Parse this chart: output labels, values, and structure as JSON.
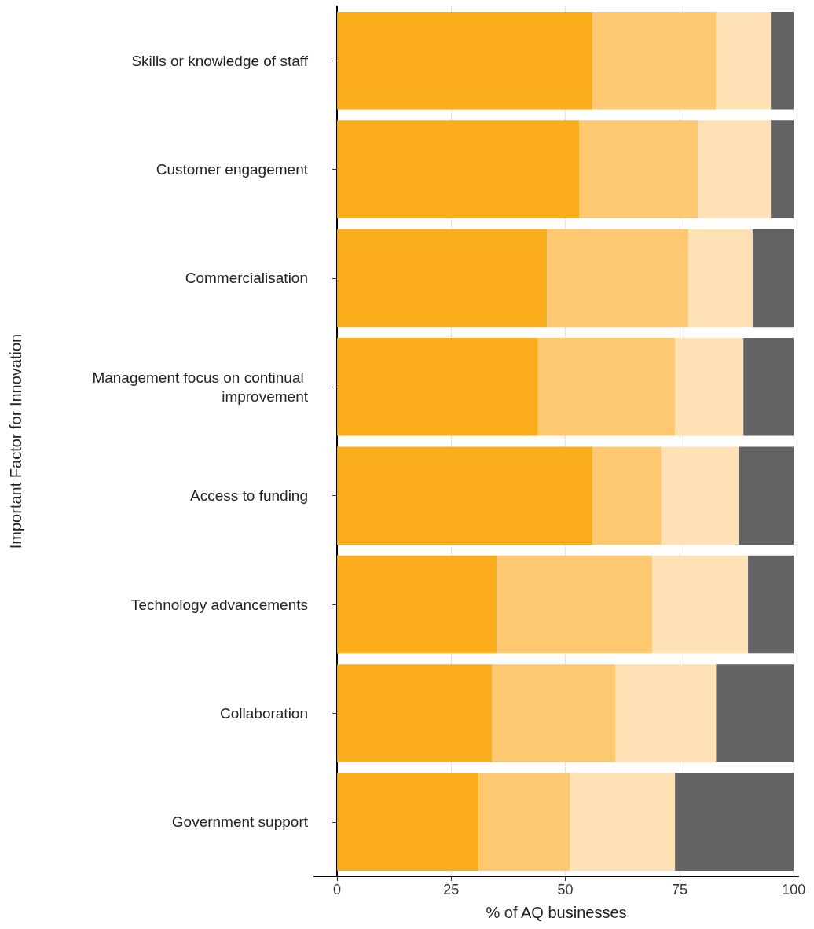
{
  "chart_data": {
    "type": "bar",
    "orientation": "horizontal",
    "stacked": true,
    "xlabel": "% of AQ businesses",
    "ylabel": "Important Factor for Innovation",
    "categories": [
      "Skills or knowledge of staff",
      "Customer engagement",
      "Commercialisation",
      "Management focus on continual improvement",
      "Access to funding",
      "Technology advancements",
      "Collaboration",
      "Government support"
    ],
    "series": [
      {
        "color": "#fbad1b",
        "values": [
          56,
          53,
          46,
          44,
          56,
          35,
          34,
          31
        ]
      },
      {
        "color": "#fec870",
        "values": [
          27,
          26,
          31,
          30,
          15,
          34,
          27,
          20
        ]
      },
      {
        "color": "#fee2b5",
        "values": [
          12,
          16,
          14,
          15,
          17,
          21,
          22,
          23
        ]
      },
      {
        "color": "#636363",
        "values": [
          5,
          5,
          9,
          11,
          12,
          10,
          17,
          26
        ]
      }
    ],
    "xlim": [
      -5,
      101
    ],
    "xticks": [
      0,
      25,
      50,
      75,
      100
    ],
    "grid": "x",
    "legend": false
  }
}
